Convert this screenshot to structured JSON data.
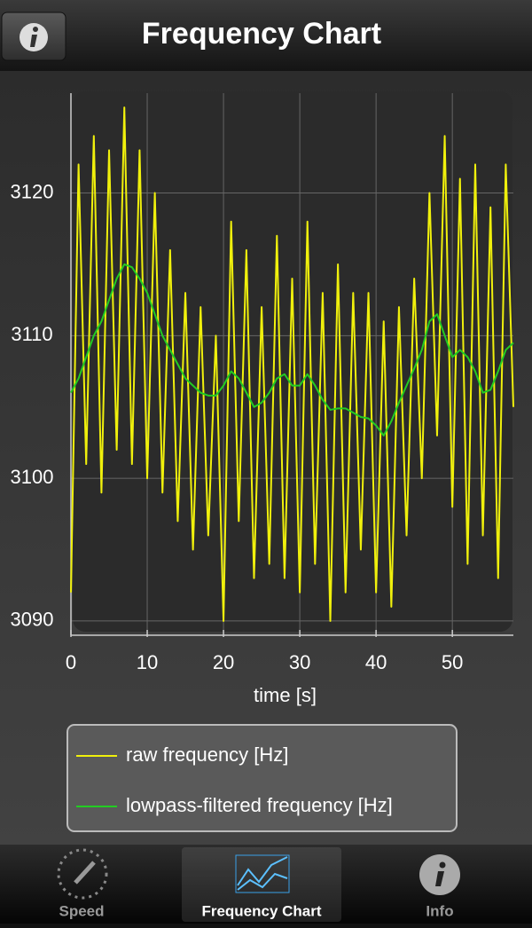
{
  "header": {
    "title": "Frequency Chart"
  },
  "chart_data": {
    "type": "line",
    "xlabel": "time [s]",
    "x": [
      0,
      1,
      2,
      3,
      4,
      5,
      6,
      7,
      8,
      9,
      10,
      11,
      12,
      13,
      14,
      15,
      16,
      17,
      18,
      19,
      20,
      21,
      22,
      23,
      24,
      25,
      26,
      27,
      28,
      29,
      30,
      31,
      32,
      33,
      34,
      35,
      36,
      37,
      38,
      39,
      40,
      41,
      42,
      43,
      44,
      45,
      46,
      47,
      48,
      49,
      50,
      51,
      52,
      53,
      54,
      55,
      56,
      57,
      58
    ],
    "series": [
      {
        "name": "raw frequency [Hz]",
        "color": "#f0f00c",
        "values": [
          3092,
          3122,
          3101,
          3124,
          3099,
          3123,
          3102,
          3126,
          3101,
          3123,
          3100,
          3120,
          3099,
          3116,
          3097,
          3113,
          3095,
          3112,
          3096,
          3110,
          3090,
          3118,
          3097,
          3116,
          3093,
          3112,
          3094,
          3117,
          3093,
          3114,
          3092,
          3118,
          3094,
          3113,
          3090,
          3115,
          3092,
          3113,
          3095,
          3113,
          3092,
          3111,
          3091,
          3112,
          3096,
          3114,
          3100,
          3120,
          3103,
          3124,
          3098,
          3121,
          3094,
          3122,
          3096,
          3119,
          3093,
          3122,
          3105
        ]
      },
      {
        "name": "lowpass-filtered frequency [Hz]",
        "color": "#22cc22",
        "values": [
          3106,
          3107,
          3108.5,
          3110,
          3111,
          3112.5,
          3114,
          3115,
          3114.8,
          3114,
          3113,
          3111.5,
          3110,
          3109,
          3108,
          3107,
          3106.5,
          3106,
          3105.8,
          3105.8,
          3106.5,
          3107.5,
          3107,
          3106,
          3105,
          3105.3,
          3106,
          3107,
          3107.3,
          3106.5,
          3106.5,
          3107.3,
          3106.5,
          3105.5,
          3104.8,
          3104.9,
          3104.9,
          3104.6,
          3104.3,
          3104.2,
          3103.7,
          3103,
          3104,
          3105.3,
          3106.5,
          3107.7,
          3109,
          3111,
          3111.5,
          3110,
          3108.5,
          3109,
          3108.5,
          3107.5,
          3106,
          3106.2,
          3107.5,
          3109,
          3109.5
        ]
      }
    ],
    "xlim": [
      0,
      58
    ],
    "ylim": [
      3089,
      3127
    ],
    "xticks": [
      0,
      10,
      20,
      30,
      40,
      50
    ],
    "yticks": [
      3090,
      3100,
      3110,
      3120
    ],
    "grid": true
  },
  "tabs": [
    {
      "label": "Speed"
    },
    {
      "label": "Frequency Chart"
    },
    {
      "label": "Info"
    }
  ]
}
